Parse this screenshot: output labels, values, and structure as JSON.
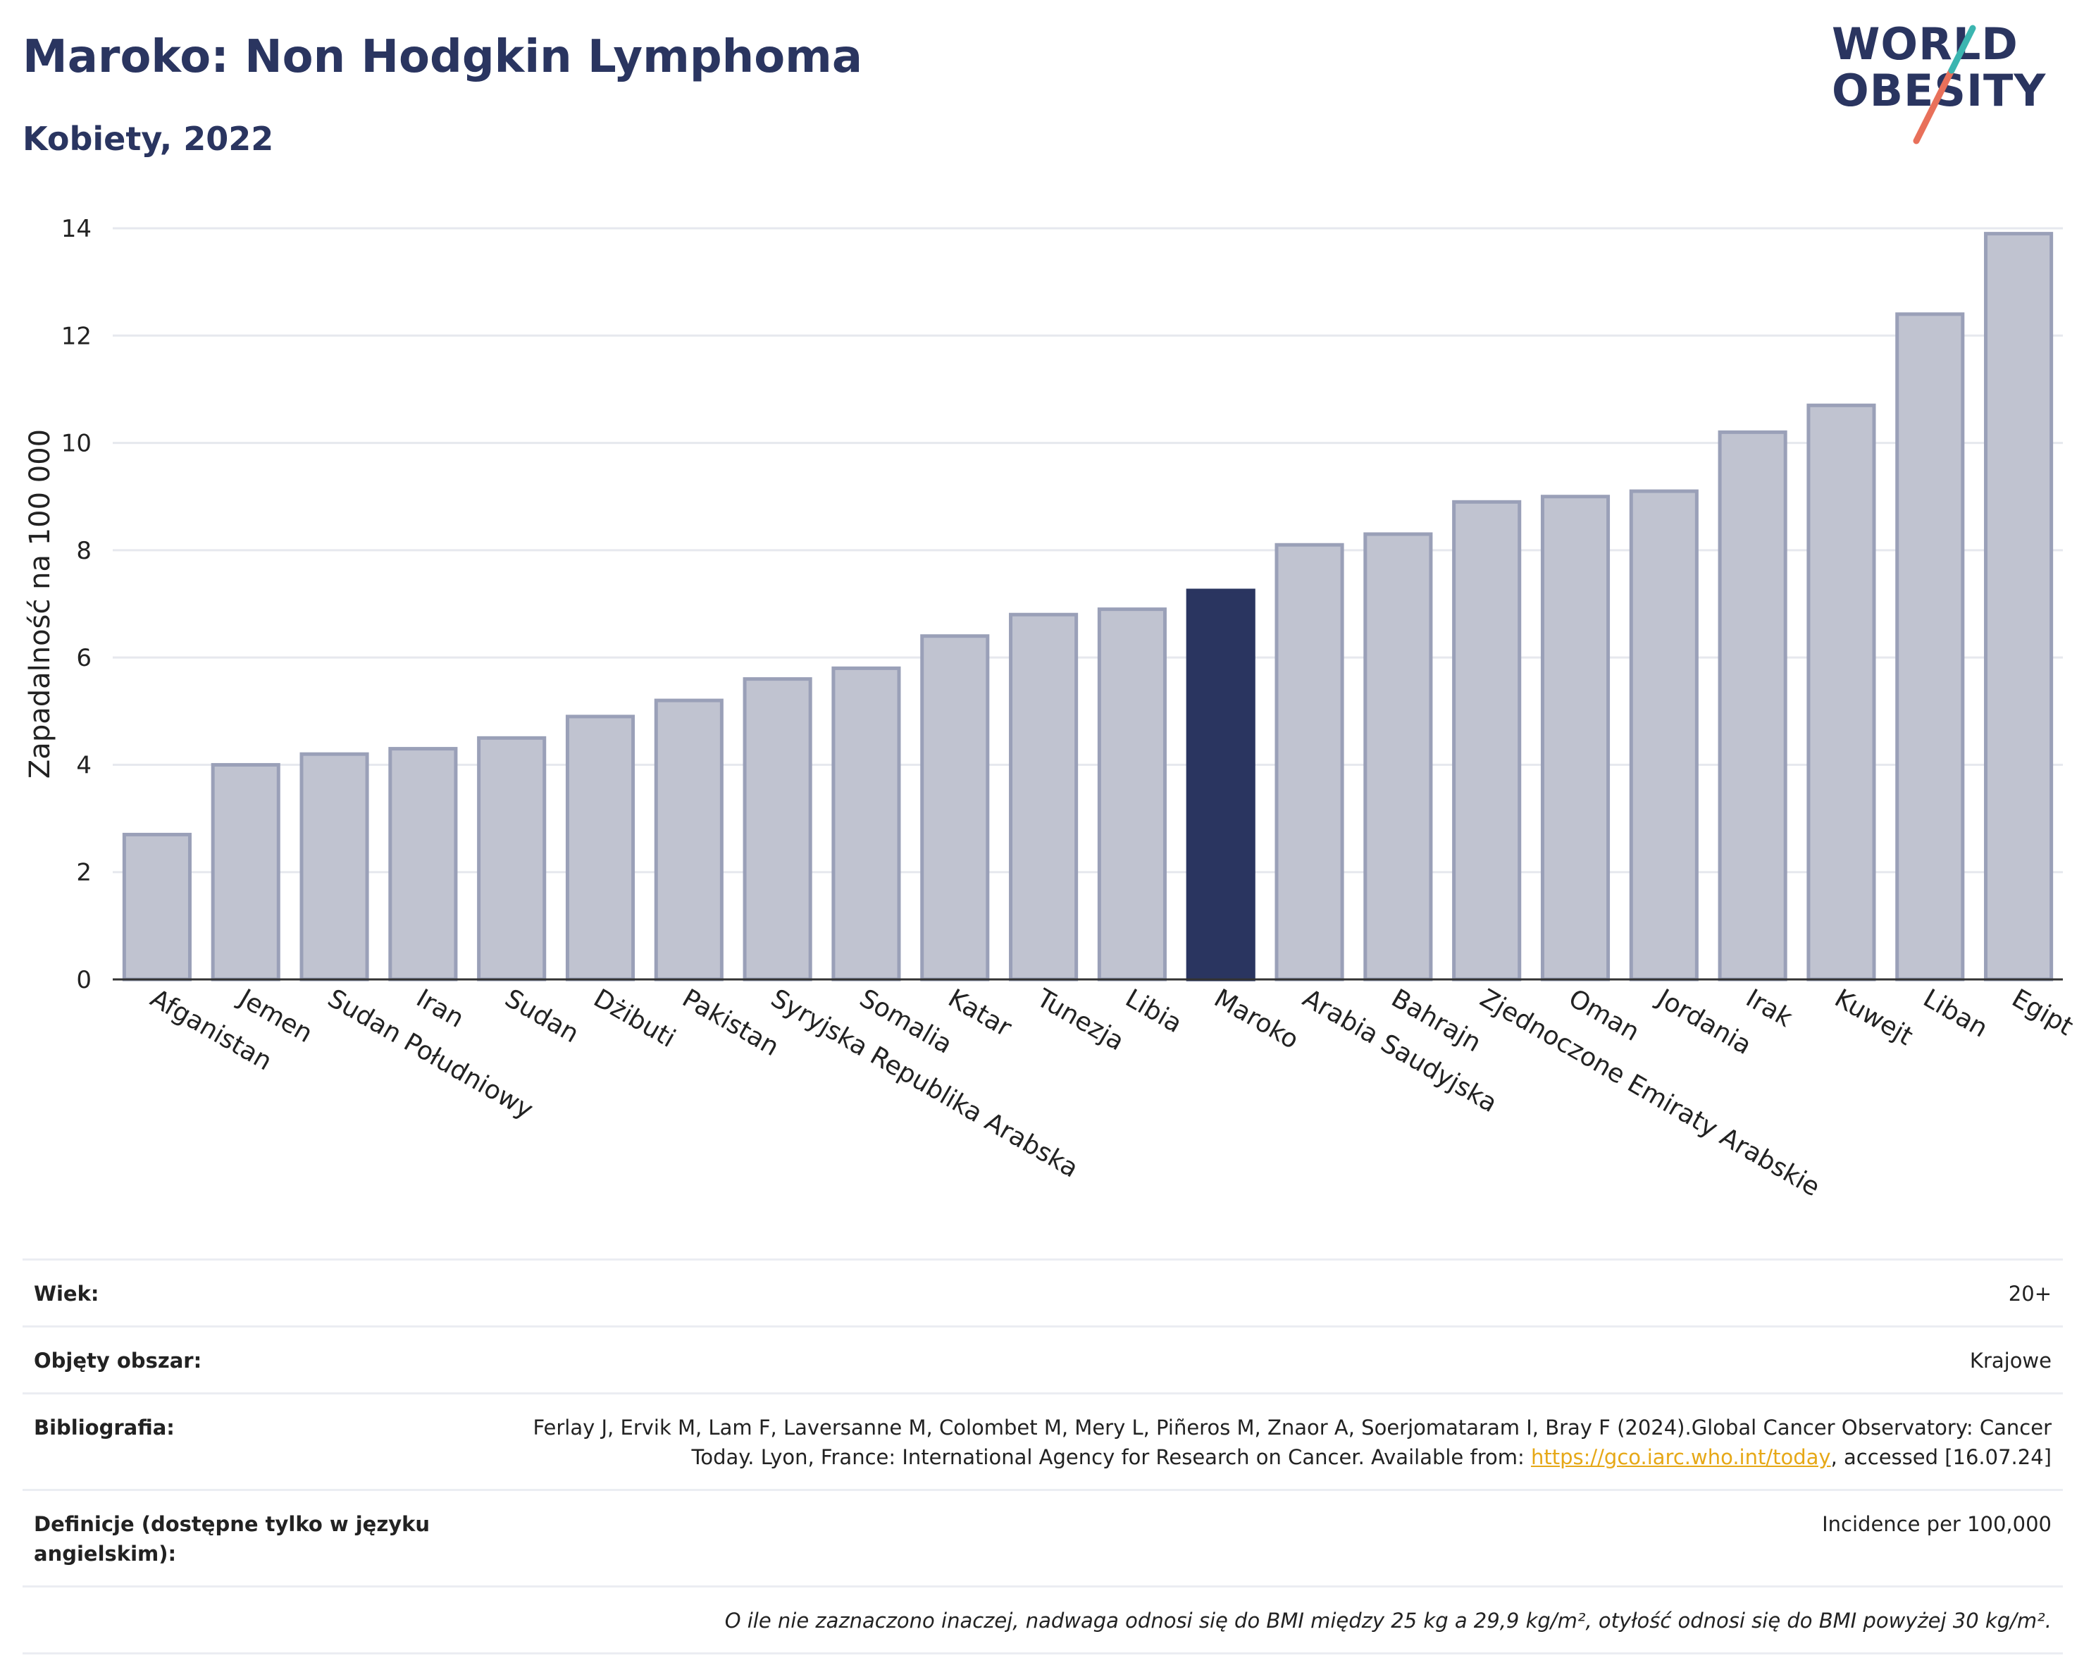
{
  "header": {
    "title": "Maroko: Non Hodgkin Lymphoma",
    "subtitle": "Kobiety, 2022"
  },
  "logo": {
    "line1": "WORLD",
    "line2": "OBESITY"
  },
  "chart_data": {
    "type": "bar",
    "ylabel": "Zapadalność na 100 000",
    "ylim": [
      0,
      14
    ],
    "yticks": [
      0,
      2,
      4,
      6,
      8,
      10,
      12,
      14
    ],
    "grid": true,
    "highlight": "Maroko",
    "colors": {
      "bar": "#c0c3d0",
      "bar_edge": "#9aa0b8",
      "highlight": "#2a3560",
      "grid": "#e6e8ee"
    },
    "categories": [
      "Afganistan",
      "Jemen",
      "Sudan Południowy",
      "Iran",
      "Sudan",
      "Dżibuti",
      "Pakistan",
      "Syryjska Republika Arabska",
      "Somalia",
      "Katar",
      "Tunezja",
      "Libia",
      "Maroko",
      "Arabia Saudyjska",
      "Bahrajn",
      "Zjednoczone Emiraty Arabskie",
      "Oman",
      "Jordania",
      "Irak",
      "Kuwejt",
      "Liban",
      "Egipt"
    ],
    "values": [
      2.7,
      4.0,
      4.2,
      4.3,
      4.5,
      4.9,
      5.2,
      5.6,
      5.8,
      6.4,
      6.8,
      6.9,
      7.25,
      8.1,
      8.3,
      8.9,
      9.0,
      9.1,
      10.2,
      10.7,
      12.4,
      13.9
    ]
  },
  "info": {
    "age_label": "Wiek:",
    "age_value": "20+",
    "coverage_label": "Objęty obszar:",
    "coverage_value": "Krajowe",
    "biblio_label": "Bibliografia:",
    "biblio_text1": "Ferlay J, Ervik M, Lam F, Laversanne M, Colombet M, Mery L, Piñeros M, Znaor A, Soerjomataram I, Bray F (2024).Global Cancer Observatory: Cancer Today. Lyon, France: International Agency for Research on Cancer. Available from: ",
    "biblio_link": "https://gco.iarc.who.int/today",
    "biblio_text2": ", accessed [16.07.24]",
    "def_label": "Definicje (dostępne tylko w języku angielskim):",
    "def_value": "Incidence per 100,000",
    "note": "O ile nie zaznaczono inaczej, nadwaga odnosi się do BMI między 25 kg a 29,9 kg/m², otyłość odnosi się do BMI powyżej 30 kg/m²."
  }
}
